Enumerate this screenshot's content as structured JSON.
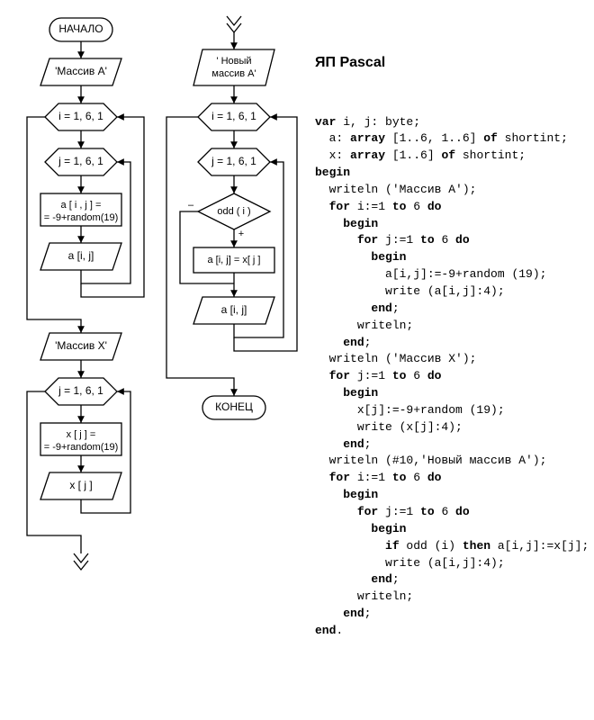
{
  "diagram": {
    "background_color": "#ffffff",
    "stroke_color": "#000000",
    "stroke_width": 1.3,
    "font": "Arial",
    "text_color": "#000000",
    "col1": {
      "start": "НАЧАЛО",
      "io_A": "'Массив А'",
      "loop_i": "i = 1, 6, 1",
      "loop_j": "j = 1, 6, 1",
      "proc_aij": "a [ i , j ] =",
      "proc_aij2": "= -9+random(19)",
      "io_aij": "a [i, j]",
      "io_X": "'Массив X'",
      "loop_j2": "j = 1, 6, 1",
      "proc_xj": "x [ j ] =",
      "proc_xj2": "= -9+random(19)",
      "io_xj": "x [ j ]"
    },
    "col2": {
      "io_new": "' Новый",
      "io_new2": "массив A'",
      "loop_i": "i = 1, 6, 1",
      "loop_j": "j = 1, 6, 1",
      "decision": "odd ( i )",
      "dec_minus": "–",
      "dec_plus": "+",
      "proc": "a [i, j] = x[ j ]",
      "io_aij": "a [i, j]",
      "end": "КОНЕЦ"
    }
  },
  "code": {
    "title": "ЯП Pascal",
    "lines": [
      {
        "indent": 0,
        "t": [
          [
            "kw",
            "var"
          ],
          [
            "",
            " i, j: byte;"
          ]
        ]
      },
      {
        "indent": 1,
        "t": [
          [
            "",
            "a: "
          ],
          [
            "kw",
            "array"
          ],
          [
            "",
            " [1..6, 1..6] "
          ],
          [
            "kw",
            "of"
          ],
          [
            "",
            " shortint;"
          ]
        ]
      },
      {
        "indent": 1,
        "t": [
          [
            "",
            "x: "
          ],
          [
            "kw",
            "array"
          ],
          [
            "",
            " [1..6] "
          ],
          [
            "kw",
            "of"
          ],
          [
            "",
            " shortint;"
          ]
        ]
      },
      {
        "indent": 0,
        "t": [
          [
            "kw",
            "begin"
          ]
        ]
      },
      {
        "indent": 1,
        "t": [
          [
            "",
            "writeln ('Массив A');"
          ]
        ]
      },
      {
        "indent": 1,
        "t": [
          [
            "kw",
            "for"
          ],
          [
            "",
            " i:=1 "
          ],
          [
            "kw",
            "to"
          ],
          [
            "",
            " 6 "
          ],
          [
            "kw",
            "do"
          ]
        ]
      },
      {
        "indent": 2,
        "t": [
          [
            "kw",
            "begin"
          ]
        ]
      },
      {
        "indent": 3,
        "t": [
          [
            "kw",
            "for"
          ],
          [
            "",
            " j:=1 "
          ],
          [
            "kw",
            "to"
          ],
          [
            "",
            " 6 "
          ],
          [
            "kw",
            "do"
          ]
        ]
      },
      {
        "indent": 4,
        "t": [
          [
            "kw",
            "begin"
          ]
        ]
      },
      {
        "indent": 5,
        "t": [
          [
            "",
            "a[i,j]:=-9+random (19);"
          ]
        ]
      },
      {
        "indent": 5,
        "t": [
          [
            "",
            "write (a[i,j]:4);"
          ]
        ]
      },
      {
        "indent": 4,
        "t": [
          [
            "kw",
            "end"
          ],
          [
            "",
            ";"
          ]
        ]
      },
      {
        "indent": 3,
        "t": [
          [
            "",
            "writeln;"
          ]
        ]
      },
      {
        "indent": 2,
        "t": [
          [
            "kw",
            "end"
          ],
          [
            "",
            ";"
          ]
        ]
      },
      {
        "indent": 1,
        "t": [
          [
            "",
            "writeln ('Массив X');"
          ]
        ]
      },
      {
        "indent": 1,
        "t": [
          [
            "kw",
            "for"
          ],
          [
            "",
            " j:=1 "
          ],
          [
            "kw",
            "to"
          ],
          [
            "",
            " 6 "
          ],
          [
            "kw",
            "do"
          ]
        ]
      },
      {
        "indent": 2,
        "t": [
          [
            "kw",
            "begin"
          ]
        ]
      },
      {
        "indent": 3,
        "t": [
          [
            "",
            "x[j]:=-9+random (19);"
          ]
        ]
      },
      {
        "indent": 3,
        "t": [
          [
            "",
            "write (x[j]:4);"
          ]
        ]
      },
      {
        "indent": 2,
        "t": [
          [
            "kw",
            "end"
          ],
          [
            "",
            ";"
          ]
        ]
      },
      {
        "indent": 1,
        "t": [
          [
            "",
            "writeln (#10,'Новый массив A');"
          ]
        ]
      },
      {
        "indent": 1,
        "t": [
          [
            "kw",
            "for"
          ],
          [
            "",
            " i:=1 "
          ],
          [
            "kw",
            "to"
          ],
          [
            "",
            " 6 "
          ],
          [
            "kw",
            "do"
          ]
        ]
      },
      {
        "indent": 2,
        "t": [
          [
            "kw",
            "begin"
          ]
        ]
      },
      {
        "indent": 3,
        "t": [
          [
            "kw",
            "for"
          ],
          [
            "",
            " j:=1 "
          ],
          [
            "kw",
            "to"
          ],
          [
            "",
            " 6 "
          ],
          [
            "kw",
            "do"
          ]
        ]
      },
      {
        "indent": 4,
        "t": [
          [
            "kw",
            "begin"
          ]
        ]
      },
      {
        "indent": 5,
        "t": [
          [
            "kw",
            "if"
          ],
          [
            "",
            " odd (i) "
          ],
          [
            "kw",
            "then"
          ],
          [
            "",
            " a[i,j]:=x[j];"
          ]
        ]
      },
      {
        "indent": 5,
        "t": [
          [
            "",
            "write (a[i,j]:4);"
          ]
        ]
      },
      {
        "indent": 4,
        "t": [
          [
            "kw",
            "end"
          ],
          [
            "",
            ";"
          ]
        ]
      },
      {
        "indent": 3,
        "t": [
          [
            "",
            "writeln;"
          ]
        ]
      },
      {
        "indent": 2,
        "t": [
          [
            "kw",
            "end"
          ],
          [
            "",
            ";"
          ]
        ]
      },
      {
        "indent": 0,
        "t": [
          [
            "kw",
            "end"
          ],
          [
            "",
            "."
          ]
        ]
      }
    ]
  }
}
